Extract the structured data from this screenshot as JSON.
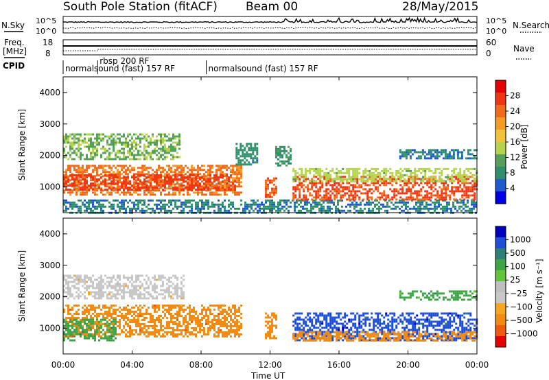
{
  "header": {
    "station": "South Pole Station (fitACF)",
    "beam": "Beam 00",
    "date": "28/May/2015"
  },
  "nsky_panel": {
    "left_label": "N.Sky",
    "right_label": "N.Search",
    "left_ticks": [
      "10^5",
      "10^0"
    ],
    "right_ticks": [
      "10^5",
      "10^0"
    ]
  },
  "freq_panel": {
    "left_label_line1": "Freq.",
    "left_label_line2": "[MHz]",
    "left_ticks": [
      "18",
      "8"
    ],
    "right_label": "Nave",
    "right_ticks": [
      "60",
      "0"
    ]
  },
  "cpid": {
    "label": "CPID",
    "segments": [
      {
        "start_ut": 0.0,
        "text": "normalsound (fast) 157 RF"
      },
      {
        "start_ut": 2.0,
        "text": "rbsp 200 RF"
      },
      {
        "start_ut": 8.3,
        "text": "normalsound (fast) 157 RF"
      }
    ]
  },
  "x_axis": {
    "label": "Time UT",
    "ticks": [
      "00:00",
      "04:00",
      "08:00",
      "12:00",
      "16:00",
      "20:00",
      "00:00"
    ]
  },
  "colors": {
    "power": [
      "#0000e6",
      "#1f5bd0",
      "#2f8f6a",
      "#56a05a",
      "#b5d44c",
      "#f2c23a",
      "#f59a25",
      "#f26b1a",
      "#f03512",
      "#e80000"
    ],
    "velocity": [
      "#0000c0",
      "#1f4fd8",
      "#2e7f77",
      "#3ea547",
      "#62c53a",
      "#bfbfbf",
      "#c8c8c8",
      "#f5a623",
      "#f38a12",
      "#ee5a10",
      "#e80000"
    ]
  },
  "chart_data": [
    {
      "type": "heatmap",
      "name": "power",
      "xlabel": "",
      "ylabel": "Slant Range [km]",
      "xlim": [
        0,
        24
      ],
      "ylim": [
        180,
        4500
      ],
      "yticks": [
        "1000",
        "2000",
        "3000",
        "4000"
      ],
      "colorbar": {
        "label": "Power [dB]",
        "range": [
          0,
          32
        ],
        "ticks": [
          "4",
          "8",
          "12",
          "16",
          "20",
          "24",
          "28"
        ]
      },
      "regions": [
        {
          "t": [
            0.0,
            10.3
          ],
          "r": [
            750,
            1700
          ],
          "v": 24
        },
        {
          "t": [
            0.0,
            10.0
          ],
          "r": [
            900,
            1400
          ],
          "v": 28
        },
        {
          "t": [
            0.0,
            6.7
          ],
          "r": [
            1900,
            2700
          ],
          "v": 12
        },
        {
          "t": [
            0.0,
            24.0
          ],
          "r": [
            200,
            600
          ],
          "v": 6
        },
        {
          "t": [
            10.0,
            11.3
          ],
          "r": [
            1700,
            2400
          ],
          "v": 7
        },
        {
          "t": [
            11.7,
            12.3
          ],
          "r": [
            700,
            1300
          ],
          "v": 26
        },
        {
          "t": [
            12.3,
            13.2
          ],
          "r": [
            1650,
            2300
          ],
          "v": 8
        },
        {
          "t": [
            13.3,
            24.0
          ],
          "r": [
            600,
            1350
          ],
          "v": 27
        },
        {
          "t": [
            13.3,
            24.0
          ],
          "r": [
            1200,
            1600
          ],
          "v": 14
        },
        {
          "t": [
            19.5,
            24.0
          ],
          "r": [
            1900,
            2200
          ],
          "v": 6
        }
      ]
    },
    {
      "type": "heatmap",
      "name": "velocity",
      "xlabel": "Time UT",
      "ylabel": "Slant Range [km]",
      "xlim": [
        0,
        24
      ],
      "ylim": [
        180,
        4500
      ],
      "yticks": [
        "1000",
        "2000",
        "3000",
        "4000"
      ],
      "colorbar": {
        "label": "Velocity [m s⁻¹]",
        "ticks": [
          "1000",
          "500",
          "100",
          "25",
          "−25",
          "−100",
          "−500",
          "−1000"
        ]
      },
      "regions": [
        {
          "t": [
            0.0,
            10.3
          ],
          "r": [
            750,
            1750
          ],
          "v": -100
        },
        {
          "t": [
            0.0,
            7.0
          ],
          "r": [
            1950,
            2700
          ],
          "v": 0
        },
        {
          "t": [
            0.0,
            3.0
          ],
          "r": [
            600,
            1300
          ],
          "v": 100
        },
        {
          "t": [
            11.7,
            12.4
          ],
          "r": [
            700,
            1500
          ],
          "v": -100
        },
        {
          "t": [
            13.3,
            24.0
          ],
          "r": [
            600,
            1500
          ],
          "v": 500
        },
        {
          "t": [
            13.3,
            24.0
          ],
          "r": [
            600,
            900
          ],
          "v": -100
        },
        {
          "t": [
            19.5,
            24.0
          ],
          "r": [
            1900,
            2200
          ],
          "v": 100
        }
      ]
    }
  ]
}
